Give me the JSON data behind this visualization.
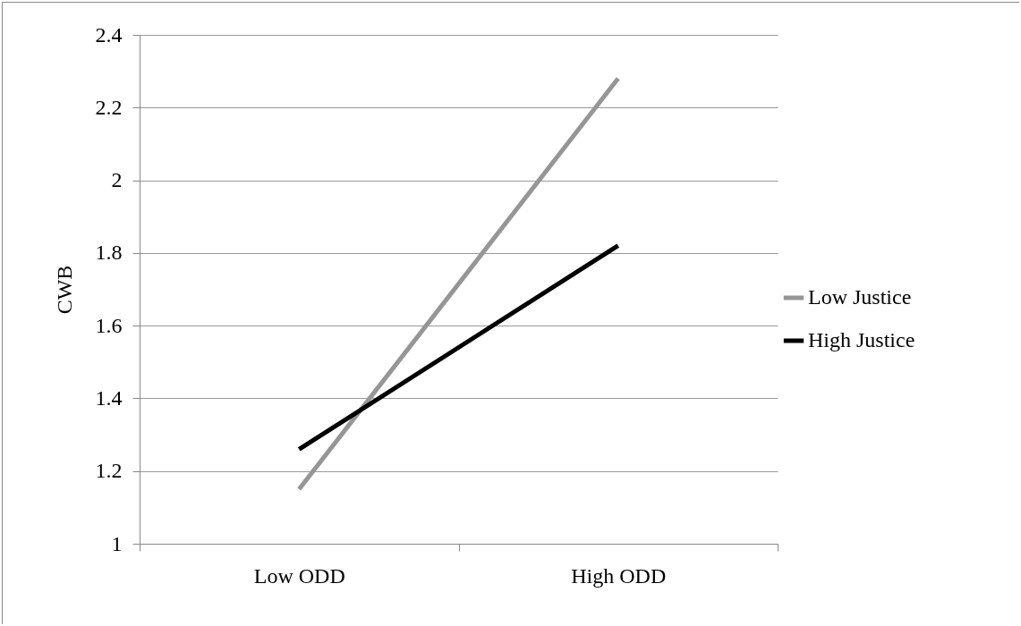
{
  "chart_data": {
    "type": "line",
    "ylabel": "CWB",
    "categories": [
      "Low ODD",
      "High ODD"
    ],
    "series": [
      {
        "name": "Low Justice",
        "color": "#969696",
        "values": [
          1.15,
          2.28
        ]
      },
      {
        "name": "High Justice",
        "color": "#000000",
        "values": [
          1.26,
          1.82
        ]
      }
    ],
    "ylim": [
      1,
      2.4
    ],
    "yticks": [
      1,
      1.2,
      1.4,
      1.6,
      1.8,
      2,
      2.2,
      2.4
    ],
    "grid": "y",
    "legend": "right",
    "marker": "none",
    "line_style": "solid"
  }
}
